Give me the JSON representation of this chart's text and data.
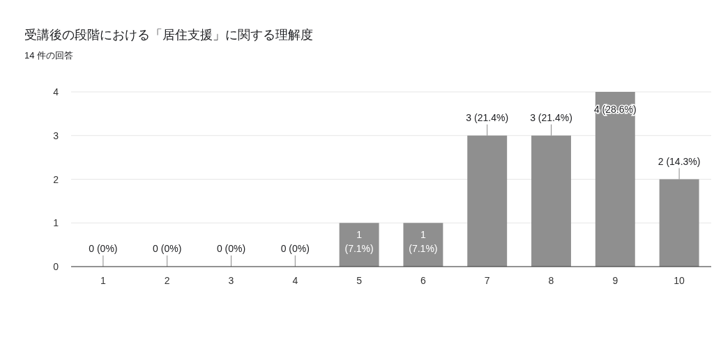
{
  "chart_data": {
    "type": "bar",
    "title": "受講後の段階における「居住支援」に関する理解度",
    "subtitle": "14 件の回答",
    "categories": [
      "1",
      "2",
      "3",
      "4",
      "5",
      "6",
      "7",
      "8",
      "9",
      "10"
    ],
    "values": [
      0,
      0,
      0,
      0,
      1,
      1,
      3,
      3,
      4,
      2
    ],
    "value_labels": [
      "0 (0%)",
      "0 (0%)",
      "0 (0%)",
      "0 (0%)",
      "1\n(7.1%)",
      "1\n(7.1%)",
      "3 (21.4%)",
      "3 (21.4%)",
      "4 (28.6%)",
      "2 (14.3%)"
    ],
    "color": "#8f8f8f",
    "ylim": [
      0,
      4
    ],
    "yticks": [
      0,
      1,
      2,
      3,
      4
    ],
    "grid": "y"
  }
}
